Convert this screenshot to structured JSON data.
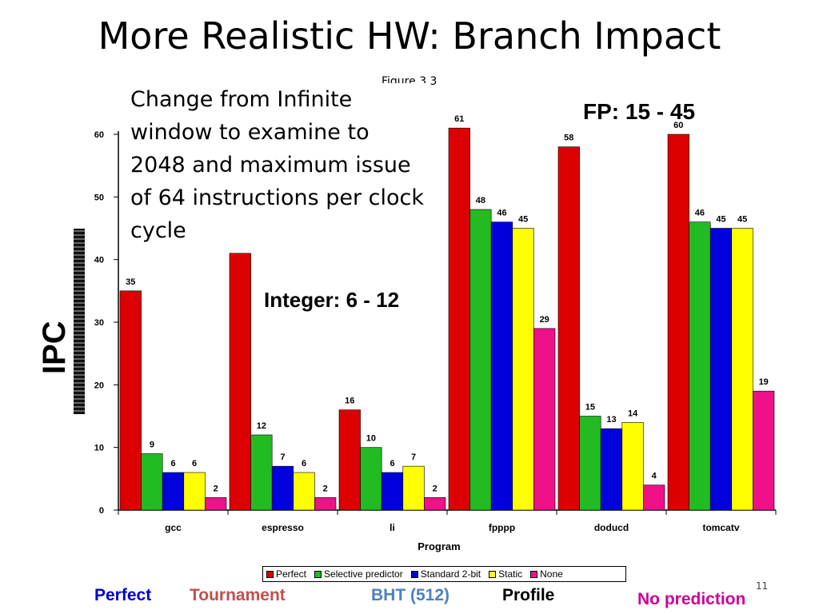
{
  "slide": {
    "title": "More Realistic HW: Branch Impact",
    "figure_ref": "Figure 3.3",
    "description": "Change from Infinite window to examine to 2048 and maximum issue of 64 instructions per clock cycle",
    "fp_note": "FP: 15 - 45",
    "int_note": "Integer: 6 - 12",
    "ylabel": "IPC",
    "page_number": "11",
    "bottom_labels": [
      {
        "text": "Perfect",
        "color": "#0000cc"
      },
      {
        "text": "Tournament",
        "color": "#c0504d"
      },
      {
        "text": "BHT (512)",
        "color": "#4f81bd"
      },
      {
        "text": "Profile",
        "color": "#000000"
      },
      {
        "text": "No prediction",
        "color": "#cc0099"
      }
    ]
  },
  "chart_data": {
    "type": "bar",
    "categories": [
      "gcc",
      "espresso",
      "li",
      "fpppp",
      "doducd",
      "tomcatv"
    ],
    "series": [
      {
        "name": "Perfect",
        "color": "#dd0000",
        "values": [
          35,
          41,
          16,
          61,
          58,
          60
        ]
      },
      {
        "name": "Selective predictor",
        "color": "#22bb22",
        "values": [
          9,
          12,
          10,
          48,
          15,
          46
        ]
      },
      {
        "name": "Standard 2-bit",
        "color": "#0000dd",
        "values": [
          6,
          7,
          6,
          46,
          13,
          45
        ]
      },
      {
        "name": "Static",
        "color": "#ffff00",
        "values": [
          6,
          6,
          7,
          45,
          14,
          45
        ]
      },
      {
        "name": "None",
        "color": "#ee1188",
        "values": [
          2,
          2,
          2,
          29,
          4,
          19
        ]
      }
    ],
    "xlabel": "Program",
    "ylim": [
      0,
      60
    ],
    "yticks": [
      0,
      10,
      20,
      30,
      40,
      50,
      60
    ],
    "grid": false,
    "legend_position": "bottom"
  }
}
